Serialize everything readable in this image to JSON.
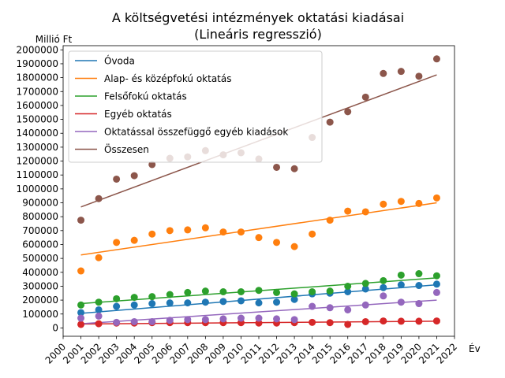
{
  "chart_data": {
    "type": "scatter",
    "title": "A költségvetési intézmények oktatási kiadásai",
    "subtitle": "(Lineáris regresszió)",
    "xlabel": "Év",
    "ylabel": "Millió Ft",
    "xlim": [
      2000,
      2022
    ],
    "ylim": [
      -60000,
      2030000
    ],
    "xticks": [
      2000,
      2001,
      2002,
      2003,
      2004,
      2005,
      2006,
      2007,
      2008,
      2009,
      2010,
      2011,
      2012,
      2013,
      2014,
      2015,
      2016,
      2017,
      2018,
      2019,
      2020,
      2021,
      2022
    ],
    "yticks": [
      0,
      100000,
      200000,
      300000,
      400000,
      500000,
      600000,
      700000,
      800000,
      900000,
      1000000,
      1100000,
      1200000,
      1300000,
      1400000,
      1500000,
      1600000,
      1700000,
      1800000,
      1900000,
      2000000
    ],
    "grid": false,
    "legend_position": "top-left",
    "x": [
      2001,
      2002,
      2003,
      2004,
      2005,
      2006,
      2007,
      2008,
      2009,
      2010,
      2011,
      2012,
      2013,
      2014,
      2015,
      2016,
      2017,
      2018,
      2019,
      2020,
      2021
    ],
    "series": [
      {
        "name": "Óvoda",
        "color": "#1f77b4",
        "values": [
          110000,
          130000,
          155000,
          165000,
          175000,
          180000,
          180000,
          185000,
          190000,
          195000,
          180000,
          185000,
          205000,
          245000,
          250000,
          260000,
          280000,
          290000,
          310000,
          305000,
          315000
        ],
        "trend": [
          105000,
          310000
        ]
      },
      {
        "name": "Alap- és középfokú oktatás",
        "color": "#ff7f0e",
        "values": [
          410000,
          505000,
          615000,
          630000,
          675000,
          700000,
          705000,
          720000,
          690000,
          690000,
          650000,
          615000,
          585000,
          675000,
          775000,
          840000,
          835000,
          890000,
          910000,
          895000,
          935000
        ],
        "trend": [
          525000,
          900000
        ]
      },
      {
        "name": "Felsőfokú oktatás",
        "color": "#2ca02c",
        "values": [
          165000,
          185000,
          210000,
          220000,
          225000,
          240000,
          255000,
          265000,
          260000,
          260000,
          270000,
          255000,
          245000,
          260000,
          265000,
          300000,
          320000,
          340000,
          380000,
          390000,
          375000
        ],
        "trend": [
          175000,
          360000
        ]
      },
      {
        "name": "Egyéb oktatás",
        "color": "#d62728",
        "values": [
          25000,
          30000,
          35000,
          35000,
          38000,
          38000,
          38000,
          38000,
          38000,
          38000,
          35000,
          35000,
          38000,
          40000,
          38000,
          25000,
          45000,
          50000,
          48000,
          48000,
          50000
        ],
        "trend": [
          28000,
          48000
        ]
      },
      {
        "name": "Oktatással összefüggő egyéb kiadások",
        "color": "#9467bd",
        "values": [
          70000,
          85000,
          40000,
          45000,
          45000,
          55000,
          60000,
          60000,
          65000,
          70000,
          70000,
          65000,
          60000,
          155000,
          145000,
          130000,
          165000,
          230000,
          185000,
          175000,
          255000
        ],
        "trend": [
          30000,
          200000
        ]
      },
      {
        "name": "Összesen",
        "color": "#8c564b",
        "values": [
          775000,
          930000,
          1070000,
          1095000,
          1175000,
          1220000,
          1230000,
          1275000,
          1245000,
          1260000,
          1215000,
          1155000,
          1145000,
          1370000,
          1480000,
          1555000,
          1660000,
          1830000,
          1845000,
          1810000,
          1935000
        ],
        "trend": [
          870000,
          1820000
        ]
      }
    ]
  }
}
